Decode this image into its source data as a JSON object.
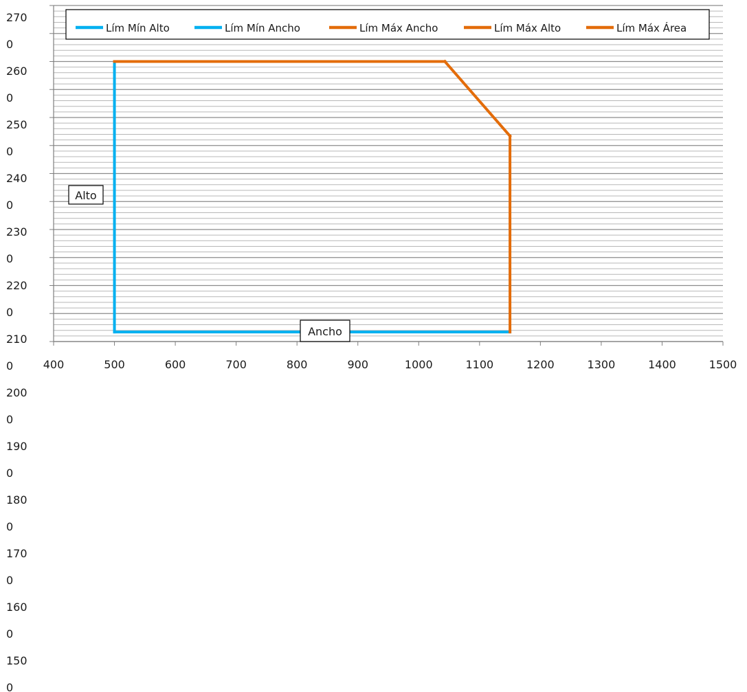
{
  "chart_data": {
    "type": "line",
    "xlabel": "Ancho",
    "ylabel": "Alto",
    "xlim": [
      400,
      1500
    ],
    "x_ticks": [
      "400",
      "500",
      "600",
      "700",
      "800",
      "900",
      "1000",
      "1100",
      "1200",
      "1300",
      "1400",
      "1500"
    ],
    "y_tick_labels": [
      [
        "270",
        "0"
      ],
      [
        "260",
        "0"
      ],
      [
        "250",
        "0"
      ],
      [
        "240",
        "0"
      ],
      [
        "230",
        "0"
      ],
      [
        "220",
        "0"
      ],
      [
        "210",
        "0"
      ],
      [
        "200",
        "0"
      ],
      [
        "190",
        "0"
      ],
      [
        "180",
        "0"
      ],
      [
        "170",
        "0"
      ],
      [
        "160",
        "0"
      ],
      [
        "150",
        "0"
      ]
    ],
    "ylim": [
      2100,
      2700
    ],
    "grid": true,
    "legend_position": "top",
    "series": [
      {
        "name": "Lím Mín Alto",
        "color": "#00b0f0",
        "points": [
          [
            500,
            2117
          ],
          [
            1150,
            2117
          ]
        ]
      },
      {
        "name": "Lím Mín Ancho",
        "color": "#00b0f0",
        "points": [
          [
            500,
            2117
          ],
          [
            500,
            2600
          ]
        ]
      },
      {
        "name": "Lím Máx Ancho",
        "color": "#e36c0a",
        "points": [
          [
            1150,
            2117
          ],
          [
            1150,
            2467
          ]
        ]
      },
      {
        "name": "Lím Máx Alto",
        "color": "#e36c0a",
        "points": [
          [
            500,
            2600
          ],
          [
            1043,
            2600
          ]
        ]
      },
      {
        "name": "Lím Máx Área",
        "color": "#e36c0a",
        "points": [
          [
            1043,
            2600
          ],
          [
            1150,
            2467
          ]
        ]
      }
    ]
  }
}
